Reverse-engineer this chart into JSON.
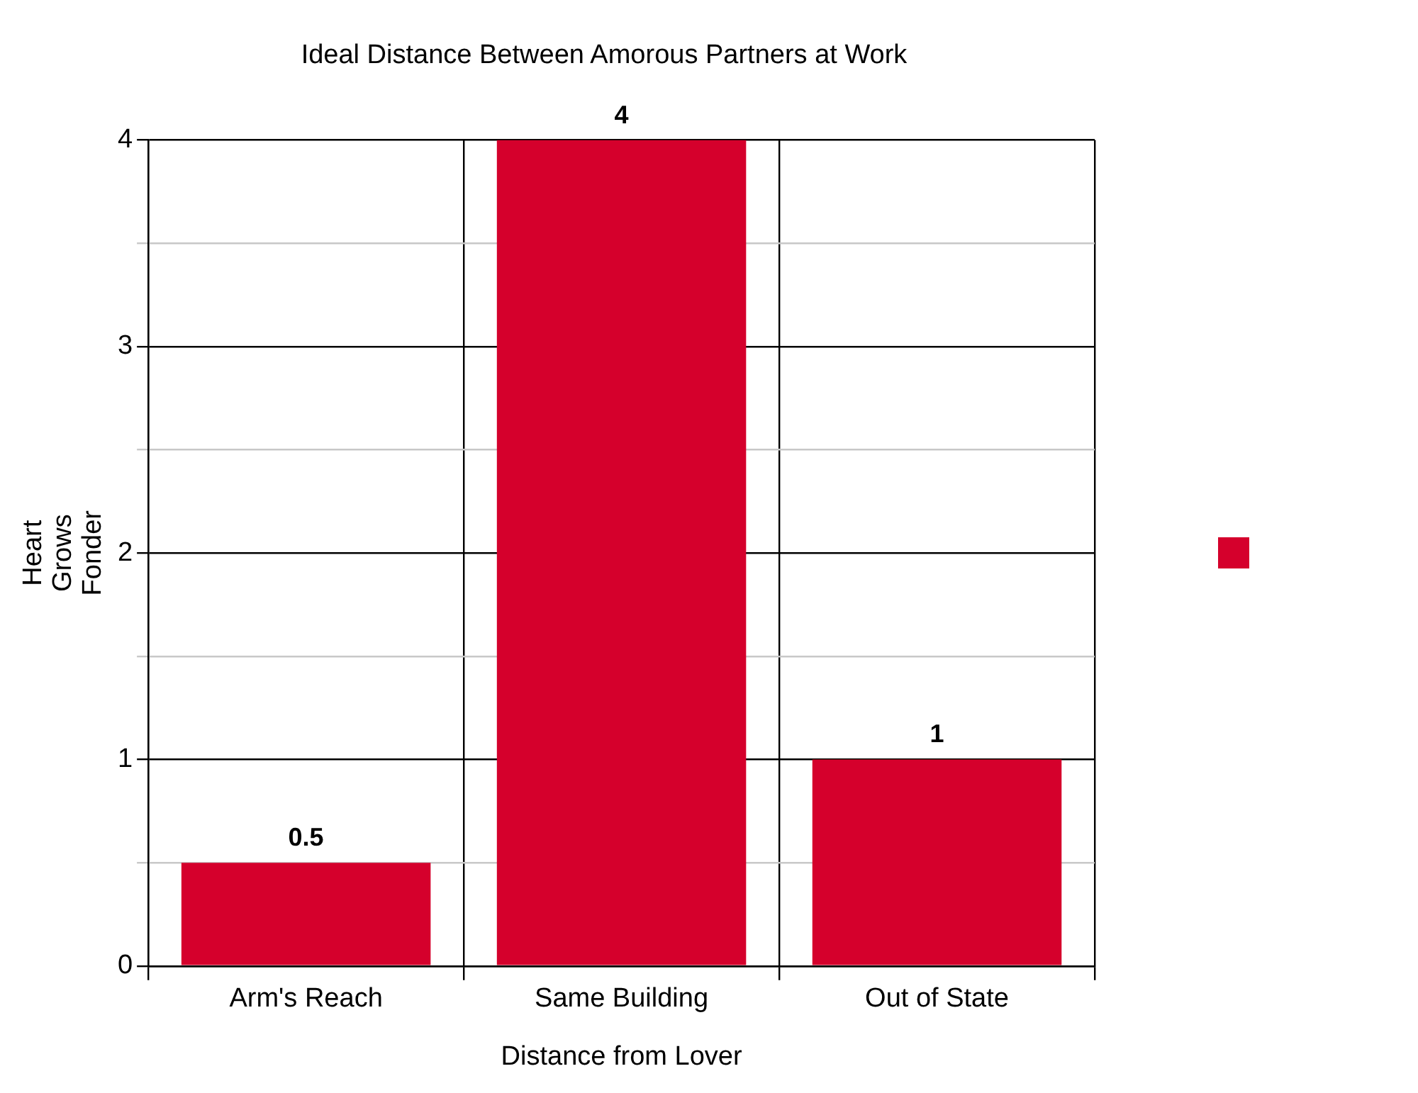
{
  "chart_data": {
    "type": "bar",
    "title": "Ideal Distance Between Amorous Partners at Work",
    "xlabel": "Distance from Lover",
    "ylabel": "Heart\nGrows\nFonder",
    "categories": [
      "Arm's Reach",
      "Same Building",
      "Out of State"
    ],
    "series": [
      {
        "color": "#d5002c",
        "values": [
          0.5,
          4,
          1
        ]
      }
    ],
    "ylim": [
      0,
      4
    ],
    "yticks": [
      0,
      {
        "value": 0.5,
        "label": null
      },
      1,
      {
        "value": 1.5,
        "label": null
      },
      2,
      {
        "value": 2.5,
        "label": null
      },
      3,
      {
        "value": 3.5,
        "label": null
      },
      4
    ],
    "grid": true,
    "data_labels": true
  }
}
